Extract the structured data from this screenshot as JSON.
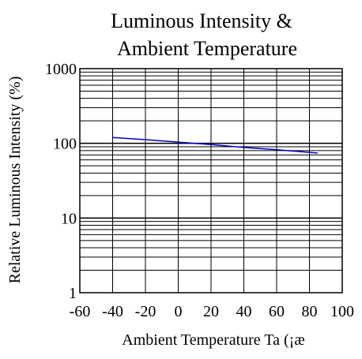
{
  "chart_data": {
    "type": "line",
    "title_lines": [
      "Luminous Intensity &",
      "Ambient Temperature"
    ],
    "xlabel": "Ambient Temperature Ta (¡æ",
    "ylabel": "Relative Luminous Intensity (%)",
    "x_scale": "linear",
    "y_scale": "log",
    "xlim": [
      -60,
      100
    ],
    "ylim": [
      1,
      1000
    ],
    "x_ticks": [
      -60,
      -40,
      -20,
      0,
      20,
      40,
      60,
      80,
      100
    ],
    "x_tick_labels": [
      "-60",
      "-40",
      "-20",
      "0",
      "20",
      "40",
      "60",
      "80",
      "100"
    ],
    "y_ticks": [
      1,
      10,
      100,
      1000
    ],
    "y_tick_labels": [
      "1",
      "10",
      "100",
      "1000"
    ],
    "grid": true,
    "series": [
      {
        "color": "#0000cc",
        "x": [
          -40,
          -20,
          0,
          20,
          40,
          60,
          85
        ],
        "y": [
          120,
          112,
          104,
          96,
          88,
          82,
          74
        ]
      }
    ]
  }
}
